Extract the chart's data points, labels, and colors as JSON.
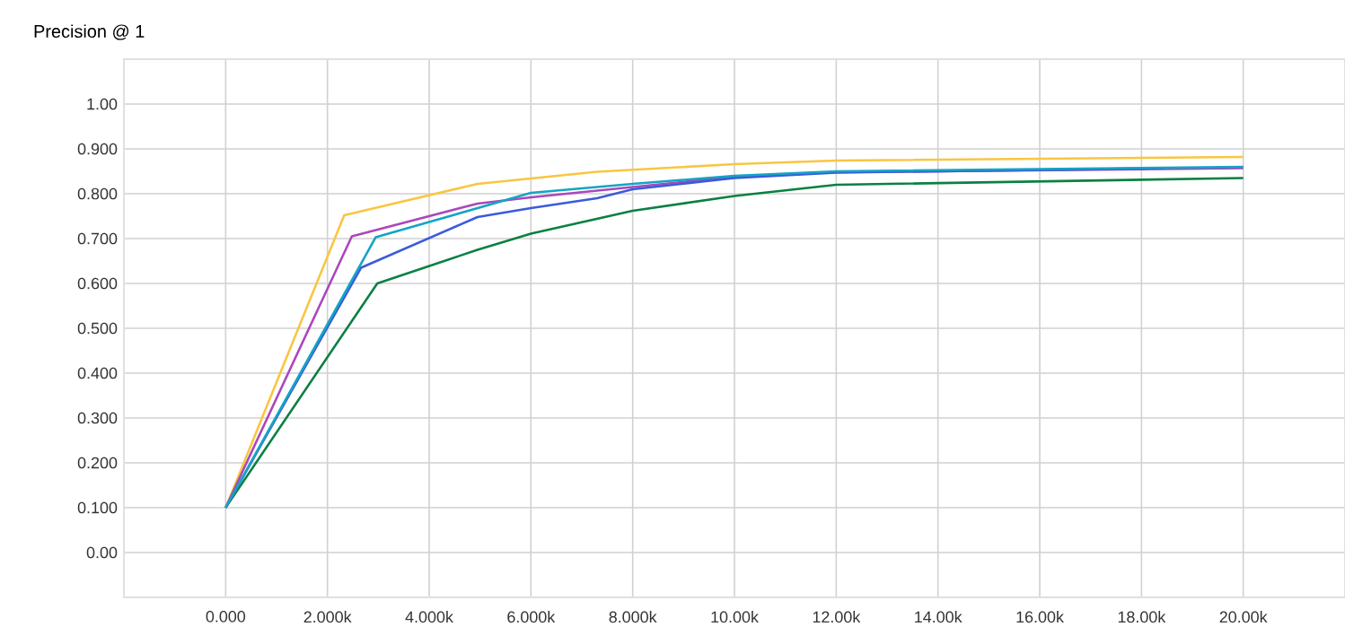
{
  "chart_data": {
    "type": "line",
    "title": "Precision @ 1",
    "xlim": [
      -2000,
      22000
    ],
    "ylim": [
      -0.1,
      1.1
    ],
    "xticks": [
      {
        "value": 0,
        "label": "0.000"
      },
      {
        "value": 2000,
        "label": "2.000k"
      },
      {
        "value": 4000,
        "label": "4.000k"
      },
      {
        "value": 6000,
        "label": "6.000k"
      },
      {
        "value": 8000,
        "label": "8.000k"
      },
      {
        "value": 10000,
        "label": "10.00k"
      },
      {
        "value": 12000,
        "label": "12.00k"
      },
      {
        "value": 14000,
        "label": "14.00k"
      },
      {
        "value": 16000,
        "label": "16.00k"
      },
      {
        "value": 18000,
        "label": "18.00k"
      },
      {
        "value": 20000,
        "label": "20.00k"
      }
    ],
    "yticks": [
      {
        "value": 0,
        "label": "0.00"
      },
      {
        "value": 0.1,
        "label": "0.100"
      },
      {
        "value": 0.2,
        "label": "0.200"
      },
      {
        "value": 0.3,
        "label": "0.300"
      },
      {
        "value": 0.4,
        "label": "0.400"
      },
      {
        "value": 0.5,
        "label": "0.500"
      },
      {
        "value": 0.6,
        "label": "0.600"
      },
      {
        "value": 0.7,
        "label": "0.700"
      },
      {
        "value": 0.8,
        "label": "0.800"
      },
      {
        "value": 0.9,
        "label": "0.900"
      },
      {
        "value": 1.0,
        "label": "1.00"
      }
    ],
    "grid": true,
    "line_style": "solid",
    "series": [
      {
        "color": "#f9c642",
        "x": [
          0,
          2330,
          4950,
          7300,
          10000,
          12000,
          20000
        ],
        "values": [
          0.1,
          0.752,
          0.822,
          0.849,
          0.866,
          0.874,
          0.882
        ]
      },
      {
        "color": "#ab47bc",
        "x": [
          0,
          2480,
          4950,
          6000,
          8000,
          10000,
          12000,
          20000
        ],
        "values": [
          0.1,
          0.705,
          0.778,
          0.792,
          0.815,
          0.838,
          0.848,
          0.857
        ]
      },
      {
        "color": "#0b8043",
        "x": [
          0,
          2980,
          4950,
          6000,
          8000,
          10000,
          12000,
          20000
        ],
        "values": [
          0.1,
          0.6,
          0.675,
          0.711,
          0.762,
          0.795,
          0.82,
          0.835
        ]
      },
      {
        "color": "#3b5bdb",
        "x": [
          0,
          2660,
          4950,
          6000,
          7300,
          8000,
          10000,
          12000,
          18450
        ],
        "values": [
          0.1,
          0.635,
          0.748,
          0.768,
          0.79,
          0.81,
          0.835,
          0.847,
          0.857
        ]
      },
      {
        "color": "#12a5c4",
        "x": [
          0,
          2950,
          6000,
          8000,
          10000,
          12000,
          20000
        ],
        "values": [
          0.1,
          0.703,
          0.802,
          0.822,
          0.84,
          0.85,
          0.86
        ]
      }
    ]
  }
}
